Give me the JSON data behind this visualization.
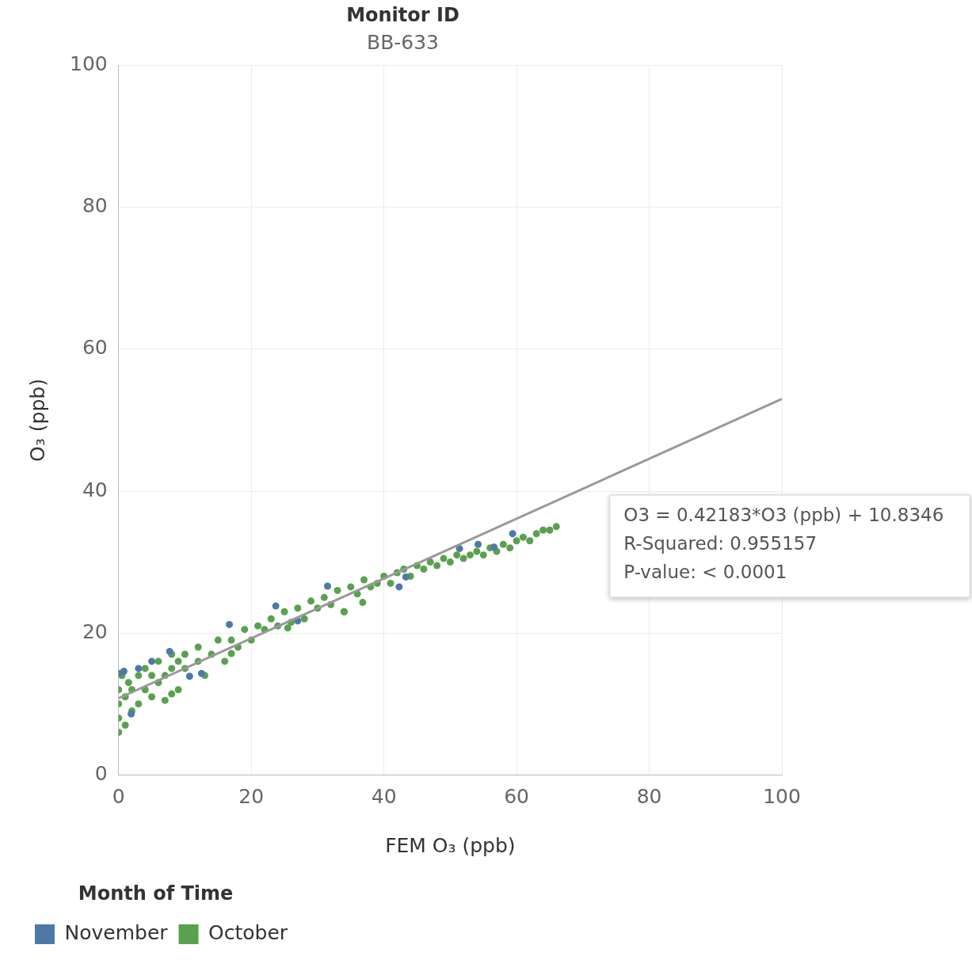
{
  "chart_data": {
    "type": "scatter",
    "title": "Monitor ID",
    "subtitle": "BB-633",
    "xlabel": "FEM O₃ (ppb)",
    "ylabel": "O₃ (ppb)",
    "legend_title": "Month of Time",
    "legend": "bottom left",
    "grid": true,
    "marker": "circle",
    "xlim": [
      0,
      100
    ],
    "xticks": [
      0,
      20,
      40,
      60,
      80,
      100
    ],
    "ylim": [
      0,
      100
    ],
    "yticks": [
      0,
      20,
      40,
      60,
      80,
      100
    ],
    "annotations": [
      "O3 = 0.42183*O3 (ppb) + 10.8346",
      "R-Squared: 0.955157",
      "P-value: < 0.0001"
    ],
    "series": [
      {
        "name": "October",
        "color": "#59a14f",
        "x": [
          0,
          0,
          0,
          0,
          0.5,
          1,
          1,
          1.5,
          2,
          2,
          3,
          3,
          4,
          4,
          5,
          5,
          6,
          6,
          7,
          8,
          8,
          9,
          9,
          10,
          10,
          12,
          12,
          13,
          14,
          15,
          16,
          17,
          18,
          19,
          20,
          21,
          22,
          23,
          24,
          25,
          26,
          27,
          28,
          29,
          30,
          31,
          32,
          33,
          34,
          35,
          36,
          37,
          38,
          39,
          40,
          41,
          42,
          43,
          44,
          45,
          46,
          47,
          48,
          49,
          50,
          51,
          52,
          53,
          54,
          55,
          56,
          57,
          58,
          59,
          60,
          61,
          62,
          63,
          64,
          65,
          66,
          7,
          8,
          17,
          25.5,
          34,
          36.8
        ],
        "values": [
          6,
          8,
          10,
          12,
          14,
          7,
          11,
          13,
          9,
          12,
          10,
          14,
          12,
          15,
          11,
          14,
          13,
          16,
          14,
          15,
          17,
          12,
          16,
          15,
          17,
          16,
          18,
          14,
          17,
          19,
          16,
          19,
          18,
          20.5,
          19,
          21,
          20.5,
          22,
          21,
          23,
          21.5,
          23.5,
          22,
          24.5,
          23.5,
          25,
          24,
          26,
          23,
          26.5,
          25.5,
          27.5,
          26.5,
          27,
          28,
          27,
          28.5,
          29,
          28,
          29.5,
          29,
          30,
          29.5,
          30.5,
          30,
          31,
          30.5,
          31,
          31.5,
          31,
          32,
          31.5,
          32.5,
          32,
          33,
          33.5,
          33,
          34,
          34.5,
          34.5,
          35,
          10.5,
          11.4,
          17.1,
          20.7,
          23,
          24.3
        ]
      },
      {
        "name": "November",
        "color": "#4e79a7",
        "x": [
          0,
          0.8,
          1.9,
          3,
          5,
          7.7,
          10.7,
          12.5,
          16.7,
          23.7,
          27,
          31.5,
          42.3,
          43.3,
          51.4,
          54.2,
          56.6,
          59.4
        ],
        "values": [
          14.3,
          14.6,
          8.6,
          15,
          16,
          17.4,
          13.9,
          14.3,
          21.2,
          23.8,
          21.7,
          26.6,
          26.5,
          27.9,
          31.9,
          32.5,
          32.1,
          34
        ]
      },
      {
        "type": "line",
        "marker": "none",
        "color": "#999999",
        "x": [
          0,
          100
        ],
        "values": [
          10.8,
          53
        ]
      }
    ]
  }
}
